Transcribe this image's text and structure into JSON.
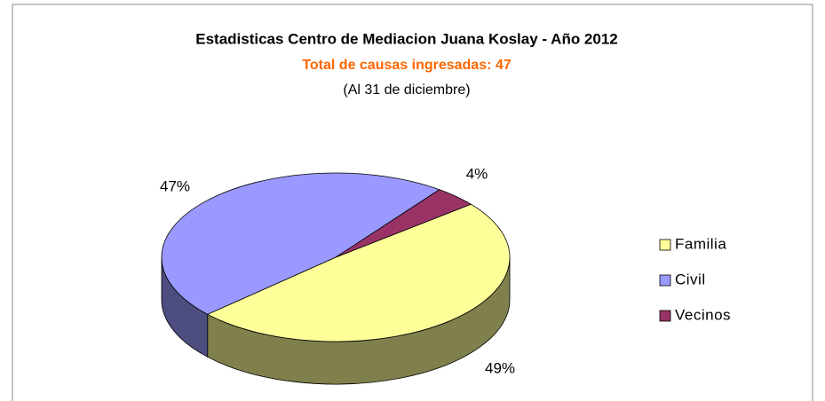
{
  "chart_data": {
    "type": "pie",
    "title": "Estadisticas Centro de Mediacion Juana Koslay - Año 2012",
    "subtitle": "Total de causas ingresadas: 47",
    "note": "(Al 31 de diciembre)",
    "categories": [
      "Familia",
      "Civil",
      "Vecinos"
    ],
    "values": [
      49,
      47,
      4
    ],
    "value_labels": [
      "49%",
      "47%",
      "4%"
    ],
    "colors": [
      "#ffff99",
      "#9999ff",
      "#993366"
    ],
    "legend": "right"
  }
}
